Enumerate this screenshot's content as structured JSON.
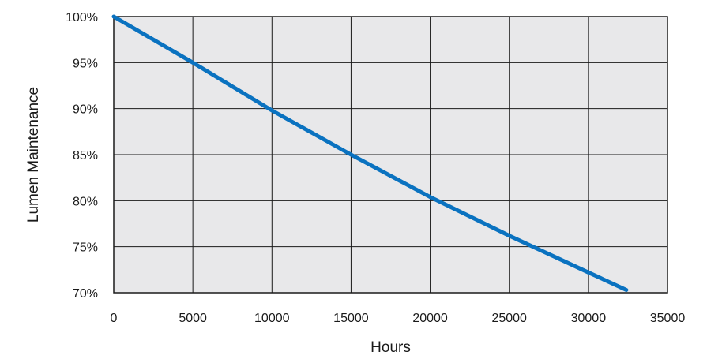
{
  "chart_data": {
    "type": "line",
    "xlabel": "Hours",
    "ylabel": "Lumen Maintenance",
    "xlim": [
      0,
      35000
    ],
    "ylim": [
      70,
      100
    ],
    "x_ticks": [
      0,
      5000,
      10000,
      15000,
      20000,
      25000,
      30000,
      35000
    ],
    "x_tick_labels": [
      "0",
      "5000",
      "10000",
      "15000",
      "20000",
      "25000",
      "30000",
      "35000"
    ],
    "y_ticks": [
      70,
      75,
      80,
      85,
      90,
      95,
      100
    ],
    "y_tick_labels": [
      "70%",
      "75%",
      "80%",
      "85%",
      "90%",
      "95%",
      "100%"
    ],
    "grid": true,
    "legend": "none",
    "series": [
      {
        "x": [
          0,
          5000,
          10000,
          15000,
          20000,
          25000,
          30000,
          32400
        ],
        "y": [
          100,
          95,
          89.8,
          85,
          80.4,
          76.2,
          72.2,
          70.3
        ]
      }
    ],
    "colors": {
      "plot_background": "#e8e8ea",
      "grid": "#1a1a1a",
      "line": "#0a72c0"
    }
  }
}
